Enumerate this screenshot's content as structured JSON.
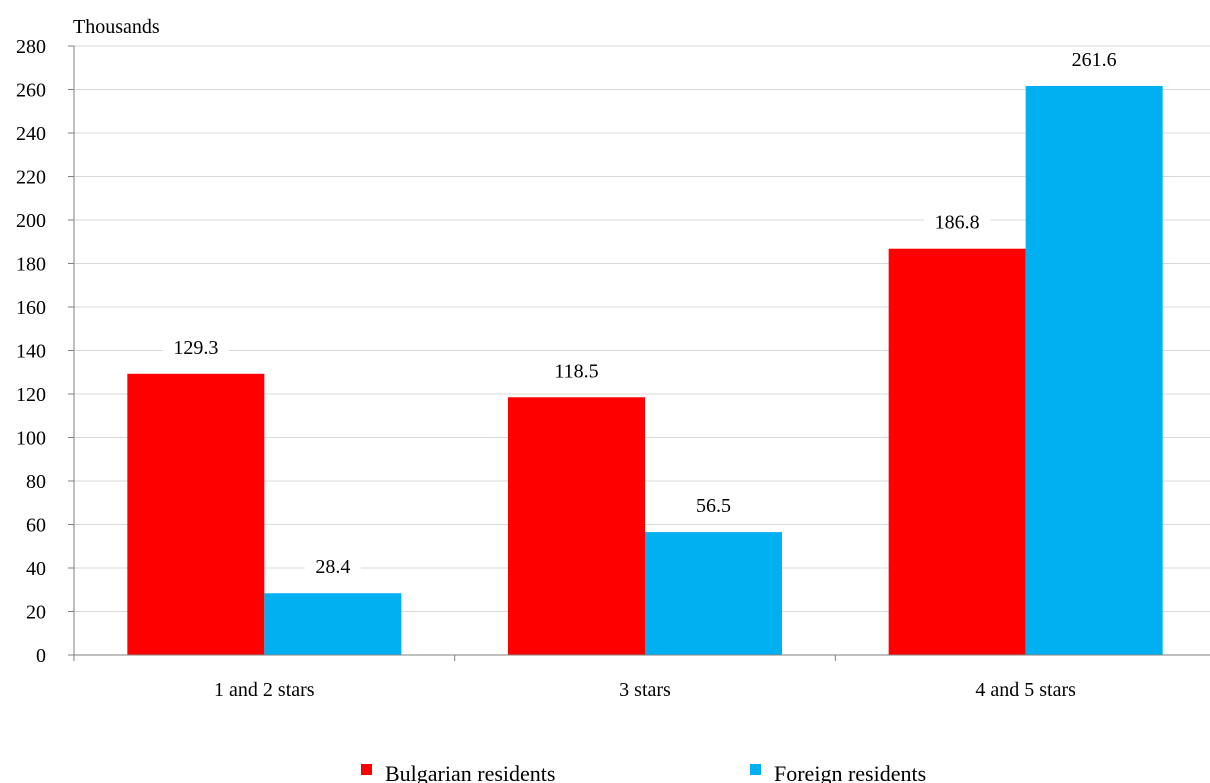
{
  "chart_data": {
    "type": "bar",
    "unit_label": "Thousands",
    "categories": [
      "1 and 2 stars",
      "3 stars",
      "4 and 5 stars"
    ],
    "series": [
      {
        "name": "Bulgarian residents",
        "color": "#ff0000",
        "values": [
          129.3,
          118.5,
          186.8
        ],
        "labels": [
          "129.3",
          "118.5",
          "186.8"
        ]
      },
      {
        "name": "Foreign residents",
        "color": "#00b0f0",
        "values": [
          28.4,
          56.5,
          261.6
        ],
        "labels": [
          "28.4",
          "56.5",
          "261.6"
        ]
      }
    ],
    "ylim": [
      0,
      280
    ],
    "yticks": [
      0,
      20,
      40,
      60,
      80,
      100,
      120,
      140,
      160,
      180,
      200,
      220,
      240,
      260,
      280
    ],
    "grid": true,
    "legend_position": "bottom"
  }
}
